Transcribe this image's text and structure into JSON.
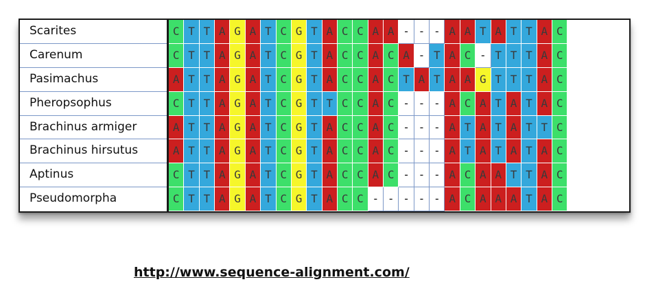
{
  "alignment": {
    "rows": [
      {
        "name": "Scarites",
        "sequence": "CTTAGATCGTACCAA---AATATTAC"
      },
      {
        "name": "Carenum",
        "sequence": "CTTAGATCGTACCACA-TAC-TTTAC"
      },
      {
        "name": "Pasimachus",
        "sequence": "ATTAGATCGTACCACTATAAGTTTAC"
      },
      {
        "name": "Pheropsophus",
        "sequence": "CTTAGATCGTTCCAC---ACATATAC"
      },
      {
        "name": "Brachinus armiger",
        "sequence": "ATTAGATCGTACCAC---ATATATTC"
      },
      {
        "name": "Brachinus hirsutus",
        "sequence": "ATTAGATCGTACCAC---ATATATAC"
      },
      {
        "name": "Aptinus",
        "sequence": "CTTAGATCGTACCAC---ACAATTAC"
      },
      {
        "name": "Pseudomorpha",
        "sequence": "CTTAGATCGTACC-----ACAAATAC"
      }
    ],
    "colors": {
      "A": "#cc1f1f",
      "C": "#3ddf6a",
      "G": "#f6f62a",
      "T": "#34a8dc",
      "-": "#ffffff"
    }
  },
  "footer": {
    "url": "http://www.sequence-alignment.com/"
  }
}
